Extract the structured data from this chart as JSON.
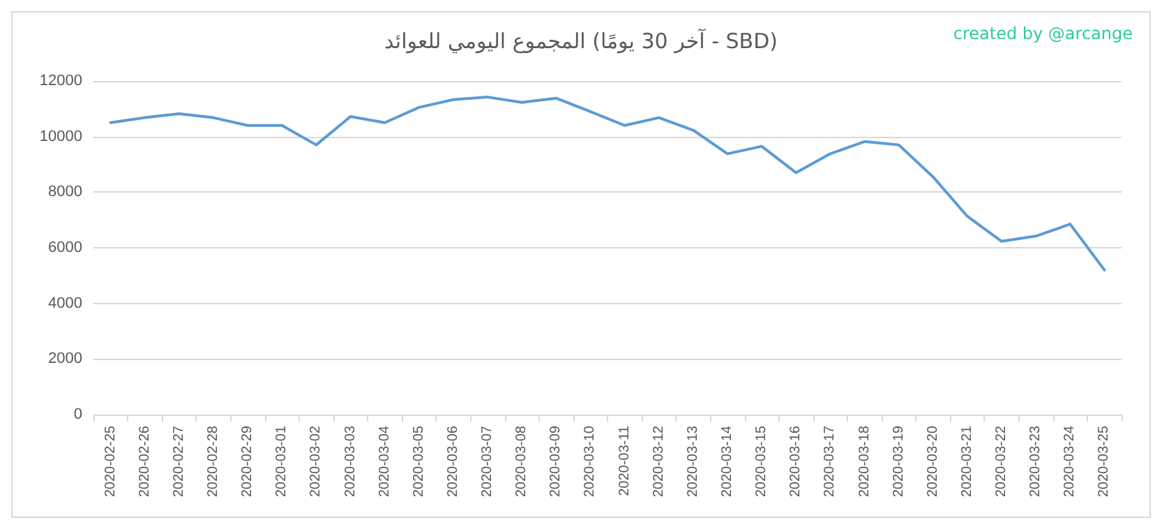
{
  "chart_data": {
    "type": "line",
    "title": "المجموع اليومي للعوائد (آخر 30 يومًا - SBD)",
    "annotations": [
      "created by @arcange"
    ],
    "categories": [
      "2020-02-25",
      "2020-02-26",
      "2020-02-27",
      "2020-02-28",
      "2020-02-29",
      "2020-03-01",
      "2020-03-02",
      "2020-03-03",
      "2020-03-04",
      "2020-03-05",
      "2020-03-06",
      "2020-03-07",
      "2020-03-08",
      "2020-03-09",
      "2020-03-10",
      "2020-03-11",
      "2020-03-12",
      "2020-03-13",
      "2020-03-14",
      "2020-03-15",
      "2020-03-16",
      "2020-03-17",
      "2020-03-18",
      "2020-03-19",
      "2020-03-20",
      "2020-03-21",
      "2020-03-22",
      "2020-03-23",
      "2020-03-24",
      "2020-03-25"
    ],
    "series": [
      {
        "color": "#5b9bd5",
        "values": [
          10500,
          10680,
          10820,
          10680,
          10400,
          10400,
          9700,
          10720,
          10500,
          11050,
          11330,
          11420,
          11230,
          11380,
          10900,
          10400,
          10680,
          10230,
          9380,
          9650,
          8700,
          9380,
          9820,
          9700,
          8550,
          7130,
          6230,
          6420,
          6850,
          5200
        ]
      }
    ],
    "ylim": [
      0,
      12000
    ],
    "yticks": [
      0,
      2000,
      4000,
      6000,
      8000,
      10000,
      12000
    ],
    "grid": "y",
    "marker": "none",
    "line_style": "solid"
  }
}
